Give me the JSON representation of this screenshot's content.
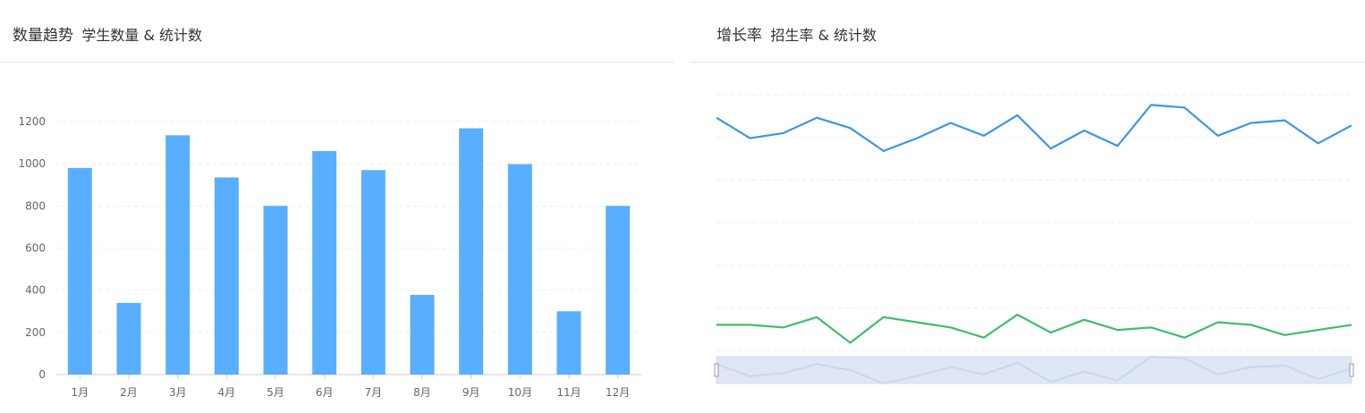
{
  "left_panel": {
    "title": "数量趋势",
    "subtitle": "学生数量 & 统计数"
  },
  "right_panel": {
    "title": "增长率",
    "subtitle": "招生率 & 统计数"
  },
  "colors": {
    "bar": "#5aaeff",
    "line_blue": "#3a97ea",
    "line_green": "#3cbf6a",
    "zoom_fill": "#dfe6f5",
    "zoom_line": "#c9d6ee",
    "grid": "#eeeeee",
    "axis": "#cccccc",
    "tick_text": "#666666"
  },
  "chart_data": [
    {
      "type": "bar",
      "title": "数量趋势",
      "categories": [
        "1月",
        "2月",
        "3月",
        "4月",
        "5月",
        "6月",
        "7月",
        "8月",
        "9月",
        "10月",
        "11月",
        "12月"
      ],
      "values": [
        980,
        340,
        1135,
        935,
        800,
        1060,
        970,
        378,
        1168,
        998,
        300,
        800
      ],
      "ylim": [
        0,
        1200
      ],
      "yticks": [
        "0",
        "200",
        "400",
        "600",
        "800",
        "1000",
        "1200"
      ],
      "grid": true
    },
    {
      "type": "line",
      "title": "增长率",
      "x_count": 20,
      "ylim": [
        0,
        100
      ],
      "grid": true,
      "series": [
        {
          "values": [
            91,
            83,
            85,
            91,
            87,
            78,
            83,
            89,
            84,
            92,
            79,
            86,
            80,
            96,
            95,
            84,
            89,
            90,
            81,
            88
          ]
        },
        {
          "values": [
            10,
            10,
            9,
            13,
            3,
            13,
            11,
            9,
            5,
            14,
            7,
            12,
            8,
            9,
            5,
            11,
            10,
            6,
            8,
            10
          ]
        }
      ],
      "zoom_slider": true
    }
  ]
}
